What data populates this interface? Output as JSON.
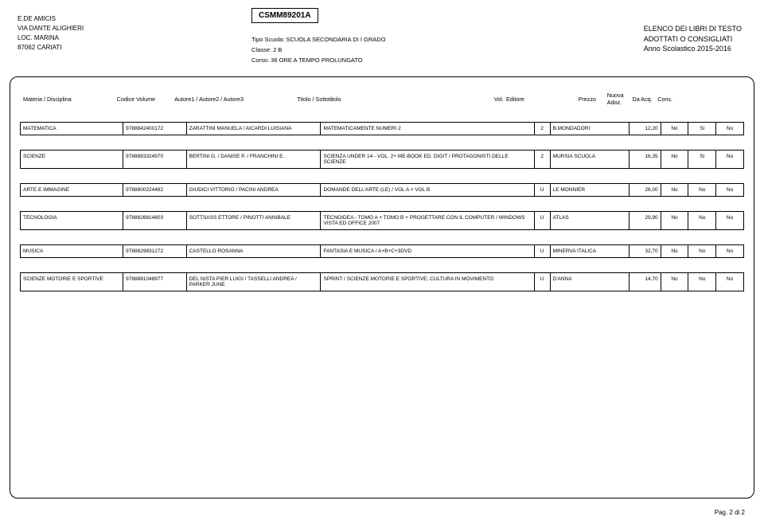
{
  "school": {
    "name": "E.DE AMICIS",
    "address1": "VIA DANTE ALIGHIERI",
    "address2": "LOC. MARINA",
    "address3": "87062  CARIATI"
  },
  "code": "CSMM89201A",
  "center": {
    "tipo_label": "Tipo Scuola:",
    "tipo_value": "SCUOLA SECONDARIA DI I GRADO",
    "classe_label": "Classe:",
    "classe_value": "2 B",
    "corso_label": "Corso:",
    "corso_value": "36 ORE A TEMPO PROLUNGATO"
  },
  "right": {
    "line1": "ELENCO DEI LIBRI DI TESTO",
    "line2": "ADOTTATI O CONSIGLIATI",
    "line3": "Anno Scolastico 2015-2016"
  },
  "headers": {
    "materia": "Materia / Disciplina",
    "codice": "Codice Volume",
    "autore": "Autore1 / Autore2 / Autore3",
    "titolo": "Titolo / Sottotitolo",
    "vol": "Vol.",
    "editore": "Editore",
    "prezzo": "Prezzo",
    "nuova": "Nuova Adoz.",
    "da": "Da Acq.",
    "cons": "Cons."
  },
  "rows": [
    {
      "materia": "MATEMATICA",
      "code": "9788842400172",
      "autore": "ZARATTINI MANUELA / AICARDI LUISIANA",
      "titolo": "MATEMATICAMENTE NUMERI 2",
      "vol": "2",
      "editore": "B.MONDADORI",
      "prezzo": "12,20",
      "na": "No",
      "da": "Si",
      "co": "No"
    },
    {
      "materia": "SCIENZE",
      "code": "9788883324970",
      "autore": "BERTINI G. / DANISE P. / FRANCHINI E.",
      "titolo": "SCIENZA UNDER 14 - VOL. 2+ ME-BOOK ED. DIGIT / PROTAGONISTI DELLE SCIENZE",
      "vol": "2",
      "editore": "MURSIA SCUOLA",
      "prezzo": "16,35",
      "na": "No",
      "da": "Si",
      "co": "No"
    },
    {
      "materia": "ARTE E IMMAGINE",
      "code": "9788800224482",
      "autore": "GIUDICI VITTORIO / PACINI ANDREA",
      "titolo": "DOMANDE DELL'ARTE (LE) / VOL A + VOL B",
      "vol": "U",
      "editore": "LE MONNIER",
      "prezzo": "26,00",
      "na": "No",
      "da": "No",
      "co": "No"
    },
    {
      "materia": "TECNOLOGIA",
      "code": "9788826814803",
      "autore": "SOTTSASS ETTORE / PINOTTI ANNIBALE",
      "titolo": "TECNOIDEA - TOMO A + TOMO B + PROGETTARE CON IL COMPUTER / WINDOWS VISTA ED OFFICE 2007",
      "vol": "U",
      "editore": "ATLAS",
      "prezzo": "29,90",
      "na": "No",
      "da": "No",
      "co": "No"
    },
    {
      "materia": "MUSICA",
      "code": "9788829831272",
      "autore": "CASTELLO ROSANNA",
      "titolo": "FANTASIA E MUSICA / A+B+C+3DVD",
      "vol": "U",
      "editore": "MINERVA ITALICA",
      "prezzo": "32,70",
      "na": "No",
      "da": "No",
      "co": "No"
    },
    {
      "materia": "SCIENZE MOTORIE E SPORTIVE",
      "code": "9788881048977",
      "autore": "DEL NISTA PIER LUIGI / TASSELLI ANDREA / PARKER JUNE",
      "titolo": "SPRINT / SCIENZE MOTORIE E SPORTIVE, CULTURA IN MOVIMENTO",
      "vol": "U",
      "editore": "D'ANNA",
      "prezzo": "14,70",
      "na": "No",
      "da": "No",
      "co": "No"
    }
  ],
  "page": "Pag. 2 di 2"
}
